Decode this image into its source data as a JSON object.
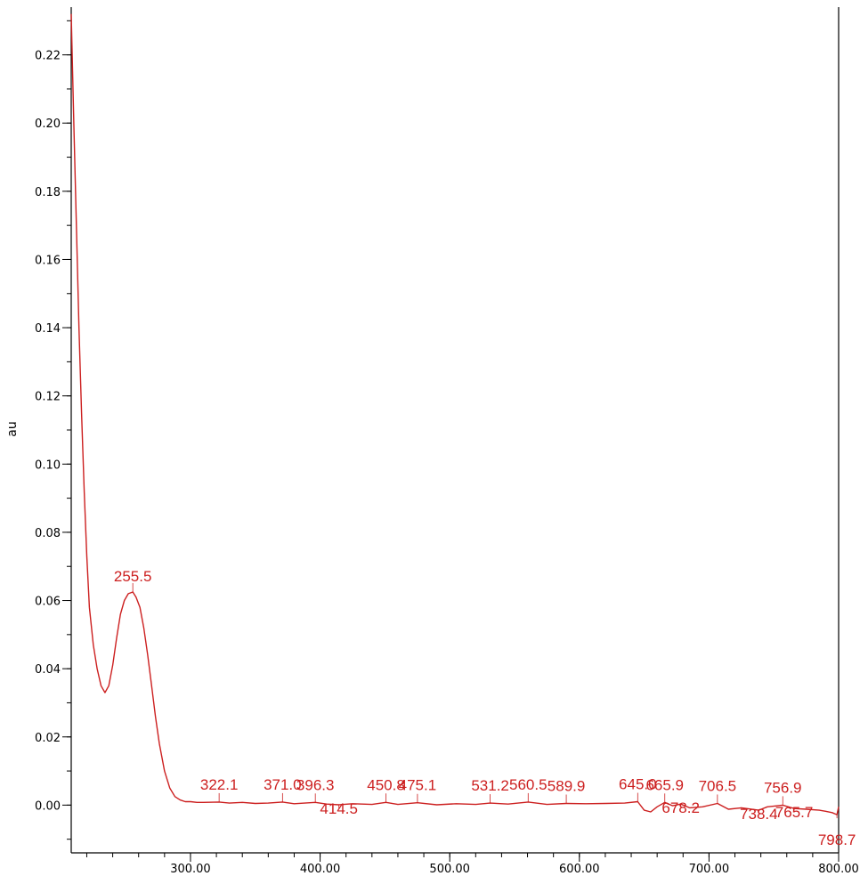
{
  "chart_data": {
    "type": "line",
    "ylabel": "au",
    "xlabel": "",
    "xlim": [
      208,
      800
    ],
    "ylim": [
      -0.014,
      0.234
    ],
    "x_major_ticks": [
      300,
      400,
      500,
      600,
      700,
      800
    ],
    "x_tick_labels": [
      "300.00",
      "400.00",
      "500.00",
      "600.00",
      "700.00",
      "800.00"
    ],
    "y_major_ticks": [
      0.0,
      0.02,
      0.04,
      0.06,
      0.08,
      0.1,
      0.12,
      0.14,
      0.16,
      0.18,
      0.2,
      0.22
    ],
    "y_tick_labels": [
      "0.00",
      "0.02",
      "0.04",
      "0.06",
      "0.08",
      "0.10",
      "0.12",
      "0.14",
      "0.16",
      "0.18",
      "0.20",
      "0.22"
    ],
    "colors": {
      "line": "#cc1f1f",
      "axis": "#000000"
    },
    "series": [
      {
        "x": [
          208,
          210,
          212,
          214,
          216,
          218,
          220,
          222,
          225,
          228,
          231,
          234,
          237,
          240,
          243,
          246,
          249,
          252,
          255.5,
          258,
          261,
          264,
          267,
          270,
          273,
          276,
          280,
          284,
          288,
          292,
          296,
          300,
          305,
          310,
          322.1,
          330,
          340,
          350,
          360,
          371.0,
          380,
          396.3,
          405,
          414.5,
          425,
          440,
          450.8,
          460,
          475.1,
          490,
          505,
          520,
          531.2,
          545,
          560.5,
          575,
          589.9,
          605,
          620,
          635,
          645.0,
          650,
          655,
          660,
          665.9,
          672,
          678.2,
          685,
          695,
          706.5,
          715,
          725,
          738.4,
          745,
          756.9,
          765.7,
          775,
          785,
          790,
          795,
          798.7,
          800
        ],
        "y": [
          0.232,
          0.2,
          0.17,
          0.14,
          0.115,
          0.092,
          0.073,
          0.058,
          0.047,
          0.04,
          0.035,
          0.033,
          0.035,
          0.041,
          0.049,
          0.056,
          0.06,
          0.062,
          0.0625,
          0.061,
          0.058,
          0.052,
          0.044,
          0.035,
          0.026,
          0.018,
          0.01,
          0.005,
          0.0025,
          0.0015,
          0.001,
          0.001,
          0.0008,
          0.0008,
          0.0009,
          0.0006,
          0.0008,
          0.0005,
          0.0006,
          0.0009,
          0.0004,
          0.0008,
          0.0003,
          0.0001,
          0.0004,
          0.0002,
          0.0008,
          0.0002,
          0.0007,
          0.0001,
          0.0004,
          0.0002,
          0.0006,
          0.0003,
          0.0009,
          0.0002,
          0.0005,
          0.0004,
          0.0005,
          0.0006,
          0.001,
          -0.0015,
          -0.002,
          -0.0005,
          0.0008,
          -0.0002,
          0.0003,
          -0.0008,
          -0.0005,
          0.0005,
          -0.0012,
          -0.0008,
          -0.0015,
          -0.0005,
          0.0,
          -0.001,
          -0.0012,
          -0.0015,
          -0.0018,
          -0.0022,
          -0.0028,
          -0.0005
        ]
      }
    ],
    "peak_labels": [
      {
        "text": "255.5",
        "x": 255.5,
        "y": 0.0625
      },
      {
        "text": "322.1",
        "x": 322.1,
        "y": 0.0009
      },
      {
        "text": "371.0",
        "x": 371.0,
        "y": 0.0009
      },
      {
        "text": "396.3",
        "x": 396.3,
        "y": 0.0008
      },
      {
        "text": "414.5",
        "x": 414.5,
        "y": 0.0001
      },
      {
        "text": "450.8",
        "x": 450.8,
        "y": 0.0008
      },
      {
        "text": "475.1",
        "x": 475.1,
        "y": 0.0007
      },
      {
        "text": "531.2",
        "x": 531.2,
        "y": 0.0006
      },
      {
        "text": "560.5",
        "x": 560.5,
        "y": 0.0009
      },
      {
        "text": "589.9",
        "x": 589.9,
        "y": 0.0005
      },
      {
        "text": "645.0",
        "x": 645.0,
        "y": 0.001
      },
      {
        "text": "665.9",
        "x": 665.9,
        "y": 0.0008
      },
      {
        "text": "678.2",
        "x": 678.2,
        "y": 0.0003
      },
      {
        "text": "706.5",
        "x": 706.5,
        "y": 0.0005
      },
      {
        "text": "738.4",
        "x": 738.4,
        "y": -0.0015
      },
      {
        "text": "756.9",
        "x": 756.9,
        "y": 0.0
      },
      {
        "text": "765.7",
        "x": 765.7,
        "y": -0.001
      },
      {
        "text": "798.7",
        "x": 798.7,
        "y": -0.0028
      }
    ]
  }
}
